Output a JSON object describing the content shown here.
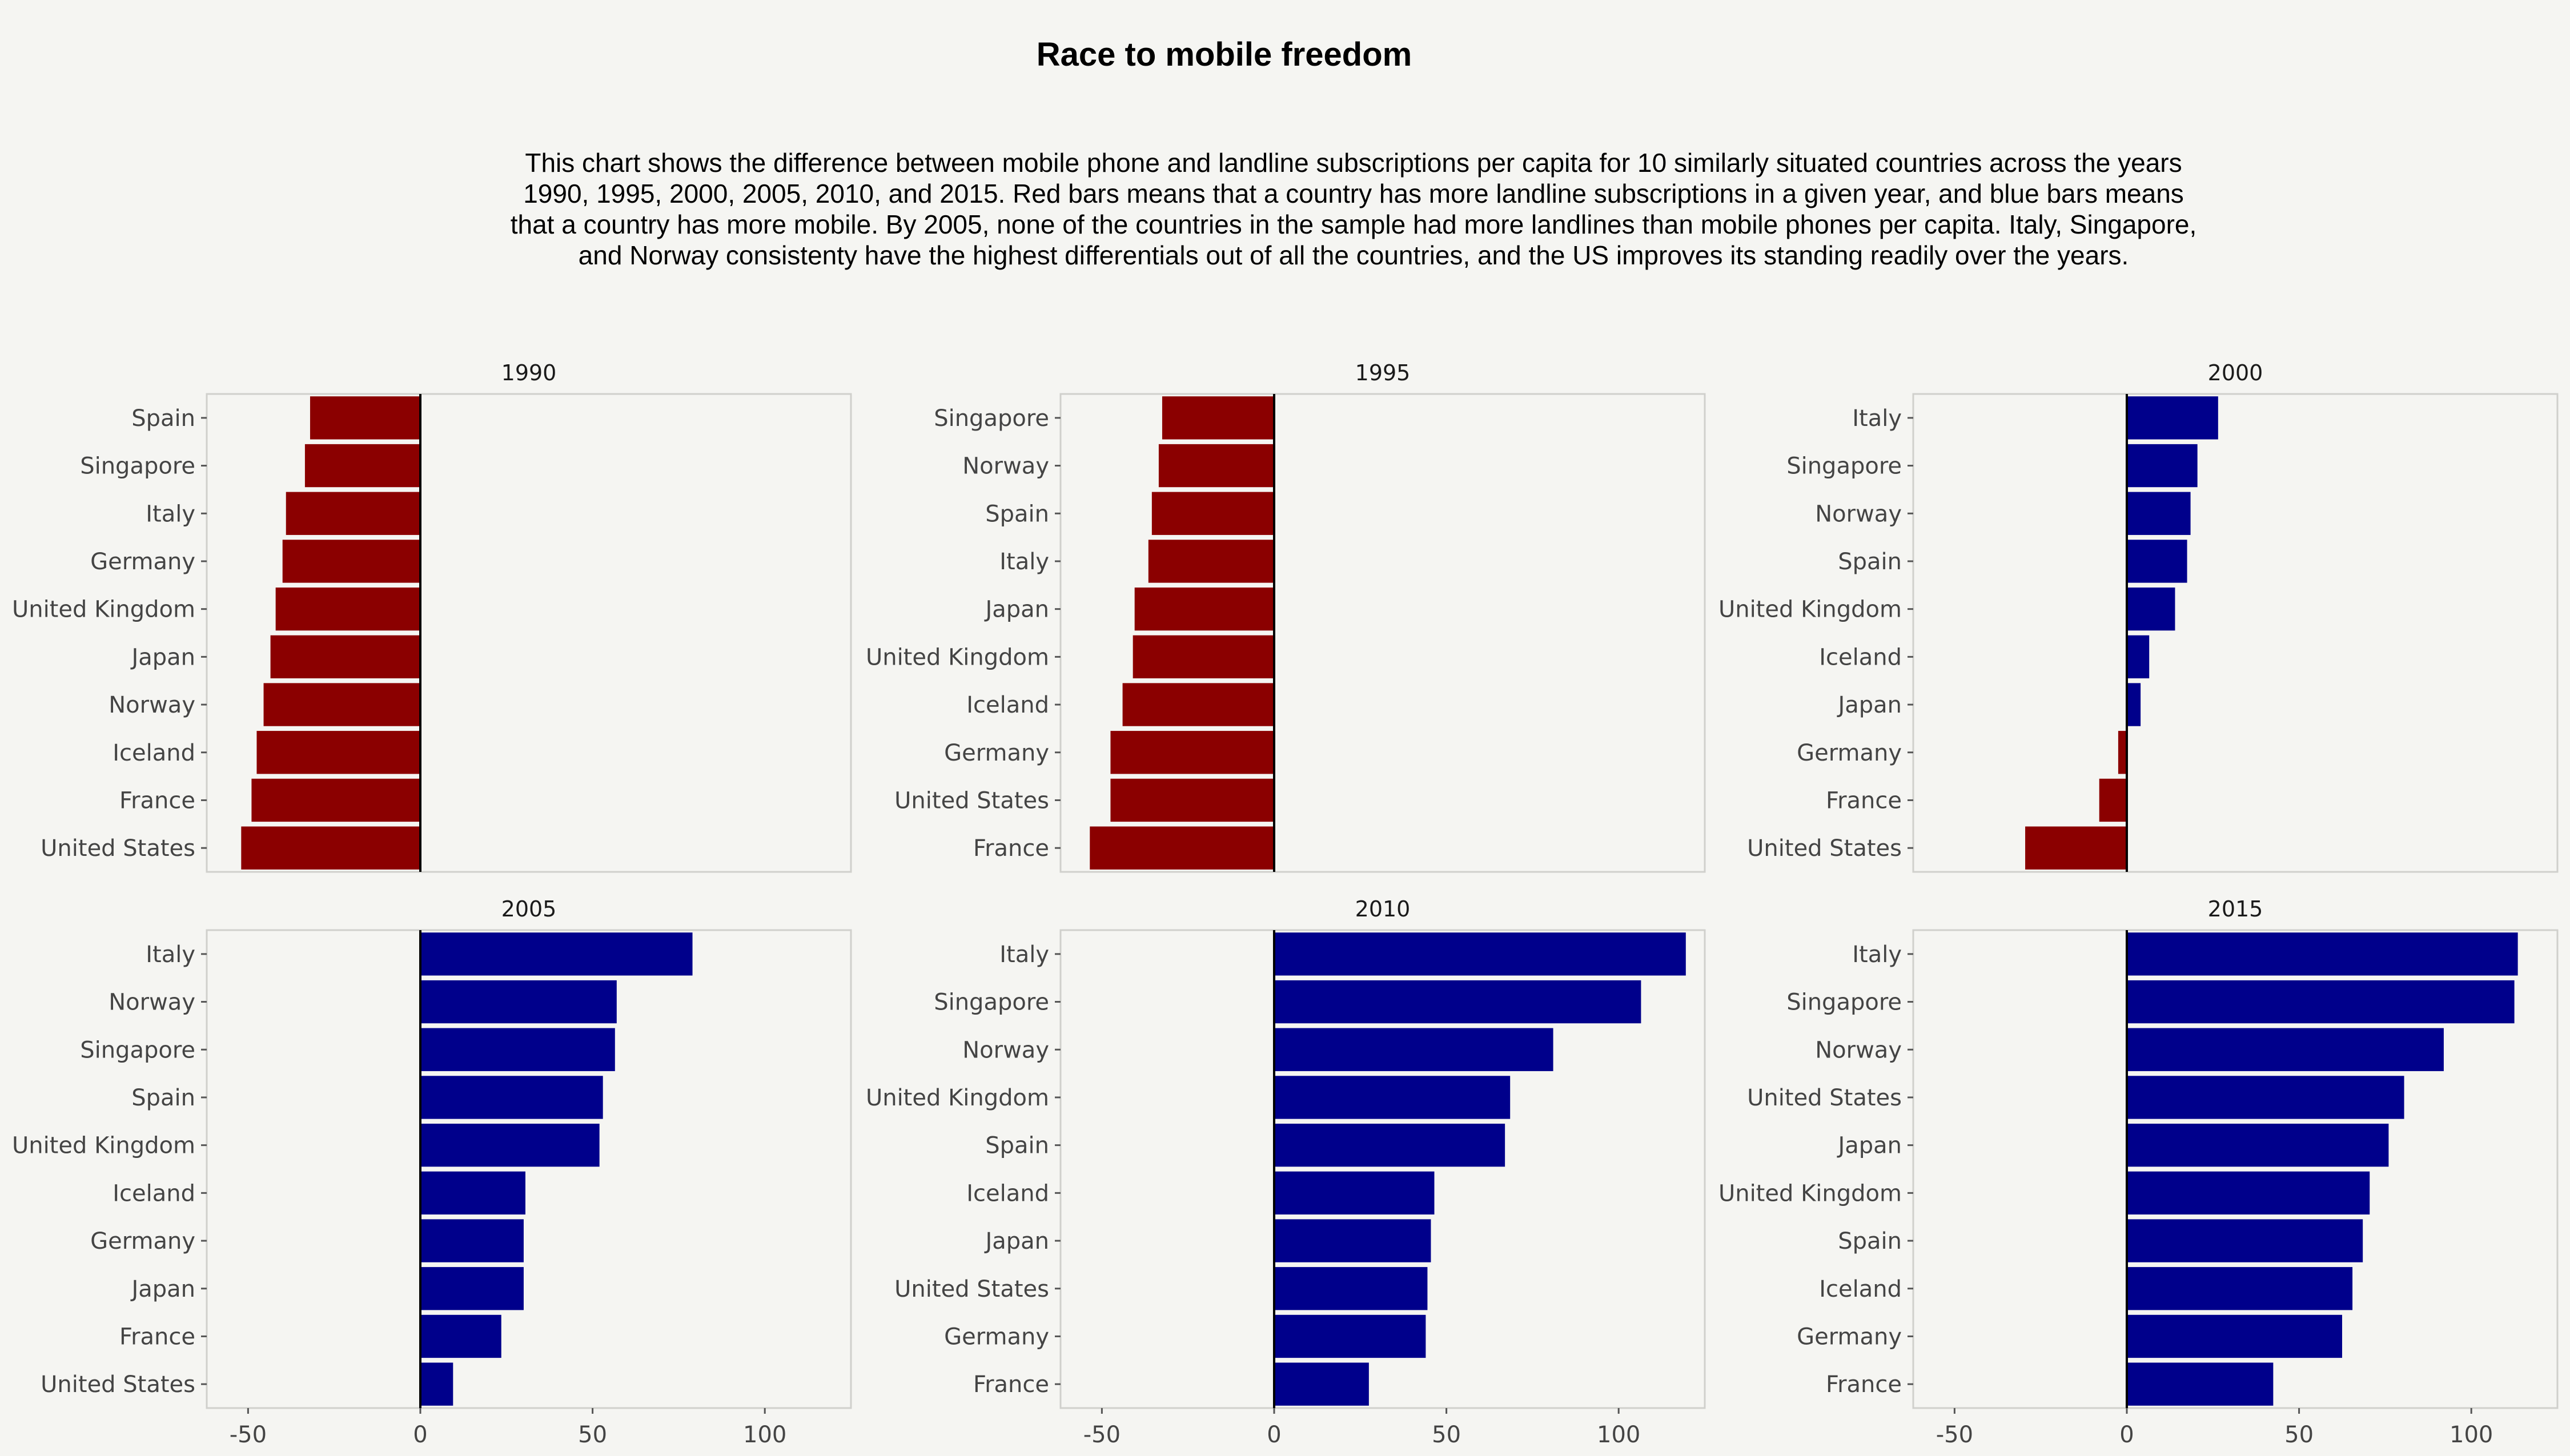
{
  "chart_data": {
    "type": "bar",
    "title": "Race to mobile freedom",
    "subtitle": "This chart shows the difference between mobile phone and landline subscriptions per capita for 10 similarly situated countries across the years 1990, 1995, 2000, 2005, 2010, and 2015. Red bars means that a country has more landline subscriptions in a given year, and blue bars means that a country has more mobile. By 2005, none of the countries in the sample had more landlines than mobile phones per capita. Italy, Singapore, and Norway consistenty have the highest differentials out of all the countries, and the US improves its standing readily over the years.",
    "xlabel": "",
    "ylabel": "",
    "xlim": [
      -62,
      125
    ],
    "x_ticks": [
      -50,
      0,
      50,
      100
    ],
    "orientation": "horizontal",
    "grid": false,
    "colors": {
      "negative": "#8b0000",
      "positive": "#00008b",
      "zero_line": "#000000"
    },
    "panels": [
      {
        "year": "1990",
        "categories": [
          "Spain",
          "Singapore",
          "Italy",
          "Germany",
          "United Kingdom",
          "Japan",
          "Norway",
          "Iceland",
          "France",
          "United States"
        ],
        "values": [
          -32,
          -33.5,
          -39,
          -40,
          -42,
          -43.5,
          -45.5,
          -47.5,
          -49,
          -52
        ]
      },
      {
        "year": "1995",
        "categories": [
          "Singapore",
          "Norway",
          "Spain",
          "Italy",
          "Japan",
          "United Kingdom",
          "Iceland",
          "Germany",
          "United States",
          "France"
        ],
        "values": [
          -32.5,
          -33.5,
          -35.5,
          -36.5,
          -40.5,
          -41,
          -44,
          -47.5,
          -47.5,
          -53.5
        ]
      },
      {
        "year": "2000",
        "categories": [
          "Italy",
          "Singapore",
          "Norway",
          "Spain",
          "United Kingdom",
          "Iceland",
          "Japan",
          "Germany",
          "France",
          "United States"
        ],
        "values": [
          26.5,
          20.5,
          18.5,
          17.5,
          14,
          6.5,
          4,
          -2.5,
          -8,
          -29.5
        ]
      },
      {
        "year": "2005",
        "categories": [
          "Italy",
          "Norway",
          "Singapore",
          "Spain",
          "United Kingdom",
          "Iceland",
          "Germany",
          "Japan",
          "France",
          "United States"
        ],
        "values": [
          79,
          57,
          56.5,
          53,
          52,
          30.5,
          30,
          30,
          23.5,
          9.5
        ]
      },
      {
        "year": "2010",
        "categories": [
          "Italy",
          "Singapore",
          "Norway",
          "United Kingdom",
          "Spain",
          "Iceland",
          "Japan",
          "United States",
          "Germany",
          "France"
        ],
        "values": [
          119.5,
          106.5,
          81,
          68.5,
          67,
          46.5,
          45.5,
          44.5,
          44,
          27.5
        ]
      },
      {
        "year": "2015",
        "categories": [
          "Italy",
          "Singapore",
          "Norway",
          "United States",
          "Japan",
          "United Kingdom",
          "Spain",
          "Iceland",
          "Germany",
          "France"
        ],
        "values": [
          113.5,
          112.5,
          92,
          80.5,
          76,
          70.5,
          68.5,
          65.5,
          62.5,
          42.5
        ]
      }
    ]
  }
}
